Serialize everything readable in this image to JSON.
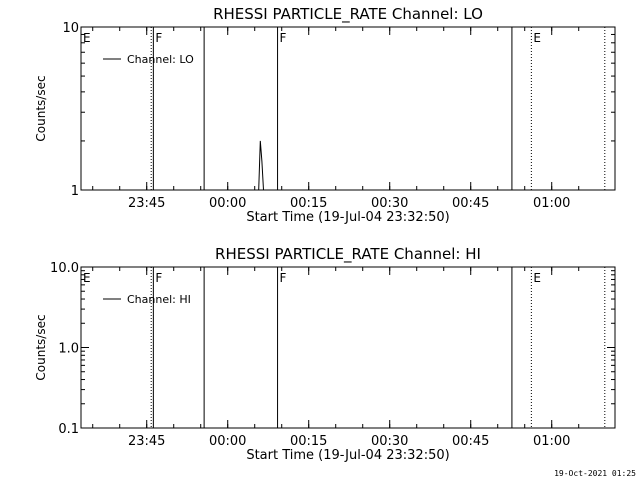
{
  "footer_timestamp": "19-Oct-2021 01:25",
  "chart_data": [
    {
      "type": "line",
      "title": "RHESSI PARTICLE_RATE Channel: LO",
      "xlabel": "Start Time (19-Jul-04 23:32:50)",
      "ylabel": "Counts/sec",
      "yscale": "log",
      "ylim": [
        1,
        10
      ],
      "yticks": [
        {
          "value": 1,
          "label": "1"
        },
        {
          "value": 10,
          "label": "10"
        }
      ],
      "xlim_minutes": [
        0,
        70
      ],
      "xticks": [
        {
          "value": 12.17,
          "label": "23:45"
        },
        {
          "value": 27.17,
          "label": "00:00"
        },
        {
          "value": 42.17,
          "label": "00:15"
        },
        {
          "value": 57.17,
          "label": "00:30"
        },
        {
          "value": 72.17,
          "label": "00:45"
        },
        {
          "value": 87.17,
          "label": "01:00"
        }
      ],
      "legend": {
        "label": "Channel: LO",
        "position": "top-left"
      },
      "series": [
        {
          "name": "Channel: LO",
          "x": [
            32.9,
            33.2,
            33.5,
            33.8
          ],
          "y": [
            1,
            2.0,
            1.5,
            1
          ]
        }
      ],
      "event_lines": [
        {
          "x": 0.0,
          "style": "solid",
          "label": "E"
        },
        {
          "x": 13.0,
          "style": "dotted",
          "label": ""
        },
        {
          "x": 13.4,
          "style": "solid",
          "label": "F"
        },
        {
          "x": 22.8,
          "style": "solid",
          "label": ""
        },
        {
          "x": 36.4,
          "style": "solid",
          "label": "F"
        },
        {
          "x": 79.8,
          "style": "solid",
          "label": ""
        },
        {
          "x": 83.4,
          "style": "dotted",
          "label": "E"
        },
        {
          "x": 97.0,
          "style": "dotted",
          "label": ""
        }
      ]
    },
    {
      "type": "line",
      "title": "RHESSI PARTICLE_RATE Channel: HI",
      "xlabel": "Start Time (19-Jul-04 23:32:50)",
      "ylabel": "Counts/sec",
      "yscale": "log",
      "ylim": [
        0.1,
        10
      ],
      "yticks": [
        {
          "value": 0.1,
          "label": "0.1"
        },
        {
          "value": 1,
          "label": "1.0"
        },
        {
          "value": 10,
          "label": "10.0"
        }
      ],
      "xlim_minutes": [
        0,
        70
      ],
      "xticks": [
        {
          "value": 12.17,
          "label": "23:45"
        },
        {
          "value": 27.17,
          "label": "00:00"
        },
        {
          "value": 42.17,
          "label": "00:15"
        },
        {
          "value": 57.17,
          "label": "00:30"
        },
        {
          "value": 72.17,
          "label": "00:45"
        },
        {
          "value": 87.17,
          "label": "01:00"
        }
      ],
      "legend": {
        "label": "Channel: HI",
        "position": "top-left"
      },
      "series": [
        {
          "name": "Channel: HI",
          "x": [],
          "y": []
        }
      ],
      "event_lines": [
        {
          "x": 0.0,
          "style": "solid",
          "label": "E"
        },
        {
          "x": 13.0,
          "style": "dotted",
          "label": ""
        },
        {
          "x": 13.4,
          "style": "solid",
          "label": "F"
        },
        {
          "x": 22.8,
          "style": "solid",
          "label": ""
        },
        {
          "x": 36.4,
          "style": "solid",
          "label": "F"
        },
        {
          "x": 79.8,
          "style": "solid",
          "label": ""
        },
        {
          "x": 83.4,
          "style": "dotted",
          "label": "E"
        },
        {
          "x": 97.0,
          "style": "dotted",
          "label": ""
        }
      ]
    }
  ]
}
